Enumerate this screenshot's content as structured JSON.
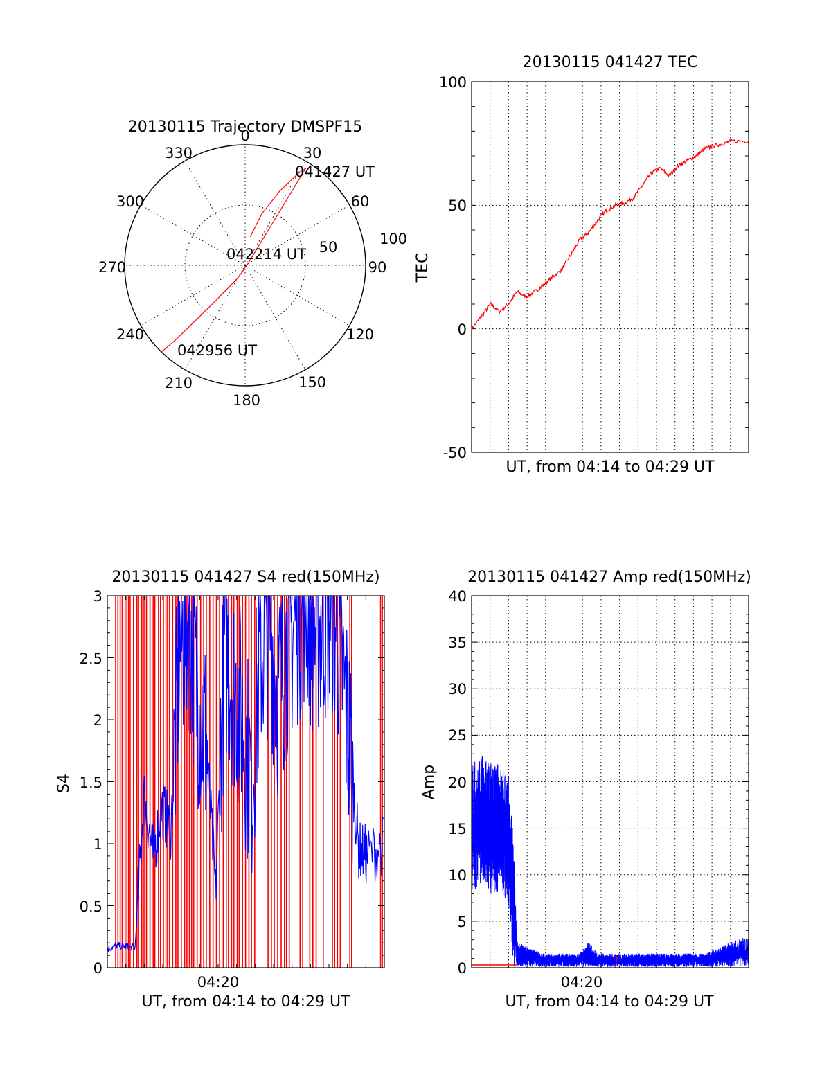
{
  "chart_data": [
    {
      "type": "polar",
      "title": "20130115 Trajectory DMSPF15",
      "angle_labels": [
        "0",
        "30",
        "60",
        "90",
        "120",
        "150",
        "180",
        "210",
        "240",
        "270",
        "300",
        "330"
      ],
      "radial_ticks": [
        "50",
        "100"
      ],
      "rlim": [
        0,
        100
      ],
      "grid": true,
      "series": [
        {
          "color": "#ff0000",
          "points_az_r": [
            [
              10,
              24
            ],
            [
              18,
              45
            ],
            [
              25,
              68
            ],
            [
              30,
              88
            ],
            [
              32,
              95
            ],
            [
              70,
              2
            ],
            [
              210,
              12
            ],
            [
              220,
              40
            ],
            [
              222,
              62
            ],
            [
              223,
              84
            ],
            [
              224,
              100
            ]
          ]
        }
      ],
      "annotations": [
        "041427 UT",
        "042214 UT",
        "042956 UT"
      ]
    },
    {
      "type": "line",
      "title": "20130115 041427 TEC",
      "xlabel": "UT, from 04:14 to 04:29 UT",
      "ylabel": "TEC",
      "xlim": [
        "04:14:27",
        "04:29:56"
      ],
      "ylim": [
        -50,
        100
      ],
      "yticks": [
        "100",
        "50",
        "0",
        "-50"
      ],
      "grid": true,
      "series": [
        {
          "color": "#ff0000",
          "x": [
            "04:14:27",
            "04:15:00",
            "04:15:30",
            "04:16:00",
            "04:16:30",
            "04:17:00",
            "04:17:30",
            "04:18:00",
            "04:18:30",
            "04:19:00",
            "04:19:30",
            "04:20:00",
            "04:20:30",
            "04:21:00",
            "04:21:30",
            "04:22:00",
            "04:22:30",
            "04:23:00",
            "04:23:30",
            "04:24:00",
            "04:24:30",
            "04:25:00",
            "04:25:30",
            "04:26:00",
            "04:26:30",
            "04:27:00",
            "04:27:30",
            "04:28:00",
            "04:28:30",
            "04:29:00",
            "04:29:56"
          ],
          "values": [
            0,
            5,
            10,
            7,
            10,
            15,
            13,
            15,
            18,
            21,
            24,
            30,
            36,
            39,
            44,
            48,
            50,
            51,
            53,
            58,
            63,
            65,
            62,
            66,
            68,
            70,
            73,
            74,
            75,
            76,
            76
          ]
        }
      ]
    },
    {
      "type": "line",
      "title": "20130115 041427 S4 red(150MHz)",
      "xlabel": "UT, from 04:14 to 04:29 UT",
      "ylabel": "S4",
      "xlim": [
        "04:14:27",
        "04:29:56"
      ],
      "ylim": [
        0,
        3
      ],
      "yticks": [
        "3",
        "2.5",
        "2",
        "1.5",
        "1",
        "0.5",
        "0"
      ],
      "xticks": [
        "04:20"
      ],
      "grid": false,
      "series": [
        {
          "color": "#0000ff",
          "x": [
            "04:14:27",
            "04:15:00",
            "04:15:30",
            "04:16:00",
            "04:16:30",
            "04:17:00",
            "04:17:30",
            "04:18:00",
            "04:18:30",
            "04:19:00",
            "04:19:30",
            "04:20:00",
            "04:20:30",
            "04:21:00",
            "04:21:30",
            "04:22:00",
            "04:22:30",
            "04:23:00",
            "04:23:30",
            "04:24:00",
            "04:24:30",
            "04:25:00",
            "04:25:30",
            "04:26:00",
            "04:26:30",
            "04:27:00",
            "04:27:30",
            "04:28:00",
            "04:28:30",
            "04:29:00",
            "04:29:56"
          ],
          "values": [
            0.15,
            0.18,
            0.17,
            0.16,
            1.4,
            0.9,
            1.3,
            1.1,
            2.6,
            2.8,
            2.2,
            1.8,
            0.6,
            2.6,
            2.3,
            2.0,
            1.5,
            2.5,
            2.8,
            2.2,
            2.6,
            2.8,
            3.0,
            2.7,
            2.8,
            2.9,
            2.5,
            1.8,
            0.95,
            0.9,
            1.0
          ]
        },
        {
          "color": "#ff0000",
          "values": [
            3,
            3,
            3,
            3,
            3,
            3,
            3,
            3,
            3,
            3,
            3,
            3,
            3,
            3,
            3,
            3,
            3,
            3,
            3,
            3,
            3,
            3,
            3,
            3,
            3,
            3,
            3,
            3,
            3,
            3,
            3
          ]
        }
      ]
    },
    {
      "type": "line",
      "title": "20130115 041427 Amp red(150MHz)",
      "xlabel": "UT, from 04:14 to 04:29 UT",
      "ylabel": "Amp",
      "xlim": [
        "04:14:27",
        "04:29:56"
      ],
      "ylim": [
        0,
        40
      ],
      "yticks": [
        "40",
        "35",
        "30",
        "25",
        "20",
        "15",
        "10",
        "5",
        "0"
      ],
      "xticks": [
        "04:20"
      ],
      "grid": true,
      "series": [
        {
          "color": "#0000ff",
          "x": [
            "04:14:27",
            "04:15:00",
            "04:15:30",
            "04:16:00",
            "04:16:30",
            "04:17:00",
            "04:17:30",
            "04:18:00",
            "04:18:30",
            "04:19:00",
            "04:19:30",
            "04:20:00",
            "04:20:30",
            "04:21:00",
            "04:21:30",
            "04:22:00",
            "04:22:30",
            "04:23:00",
            "04:23:30",
            "04:24:00",
            "04:24:30",
            "04:25:00",
            "04:25:30",
            "04:26:00",
            "04:26:30",
            "04:27:00",
            "04:27:30",
            "04:28:00",
            "04:28:30",
            "04:29:00",
            "04:29:56"
          ],
          "values": [
            15,
            16,
            15,
            15,
            14,
            1.5,
            1.2,
            1.0,
            0.8,
            0.8,
            0.8,
            0.8,
            0.8,
            1.5,
            0.8,
            0.8,
            0.8,
            0.8,
            0.8,
            0.8,
            0.8,
            0.8,
            0.8,
            0.8,
            0.8,
            0.8,
            0.8,
            1.0,
            1.2,
            1.5,
            1.8
          ]
        },
        {
          "color": "#ff0000",
          "values": [
            0.3,
            0.3,
            0.3,
            0.3,
            0.3,
            0.3,
            0.3,
            0.3,
            0.3,
            0.3,
            0.3,
            0.3,
            0.3,
            0.3,
            0.3,
            0.3,
            1.2,
            0.3,
            0.3,
            0.3,
            0.3,
            0.3,
            0.3,
            0.3,
            0.3,
            0.3,
            0.3,
            0.3,
            0.3,
            0.3,
            0.3
          ]
        }
      ]
    }
  ]
}
